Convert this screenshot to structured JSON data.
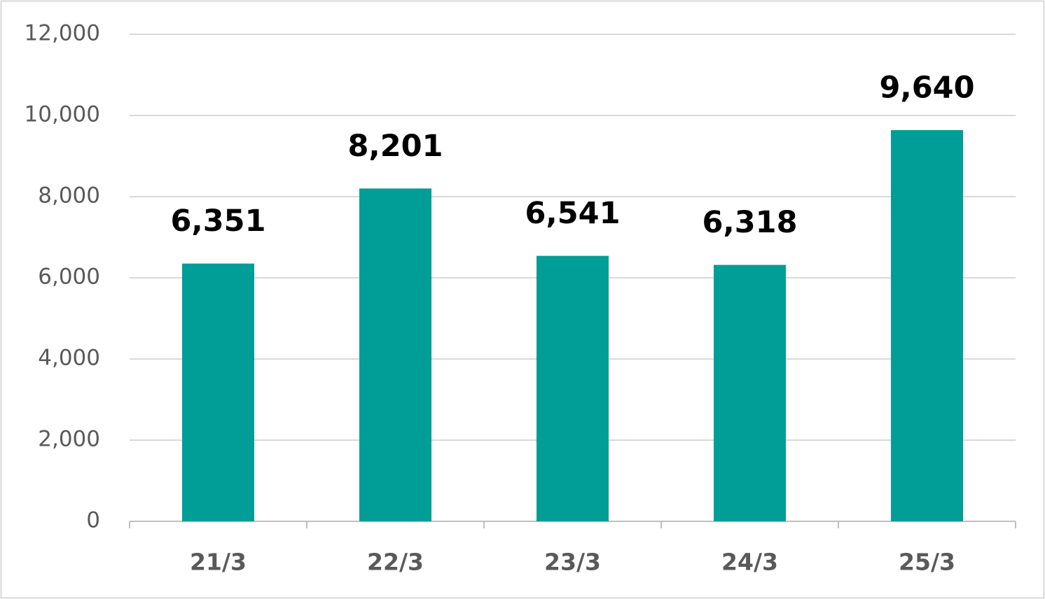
{
  "chart_data": {
    "type": "bar",
    "categories": [
      "21/3",
      "22/3",
      "23/3",
      "24/3",
      "25/3"
    ],
    "values": [
      6351,
      8201,
      6541,
      6318,
      9640
    ],
    "value_labels": [
      "6,351",
      "8,201",
      "6,541",
      "6,318",
      "9,640"
    ],
    "color": "#009e96",
    "ylim": [
      0,
      12000
    ],
    "yticks": [
      0,
      {
        "value": 2000,
        "label": "2,000"
      },
      {
        "value": 4000,
        "label": "4,000"
      },
      {
        "value": 6000,
        "label": "6,000"
      },
      {
        "value": 8000,
        "label": "8,000"
      },
      {
        "value": 10000,
        "label": "10,000"
      },
      {
        "value": 12000,
        "label": "12,000"
      }
    ],
    "grid": true
  }
}
